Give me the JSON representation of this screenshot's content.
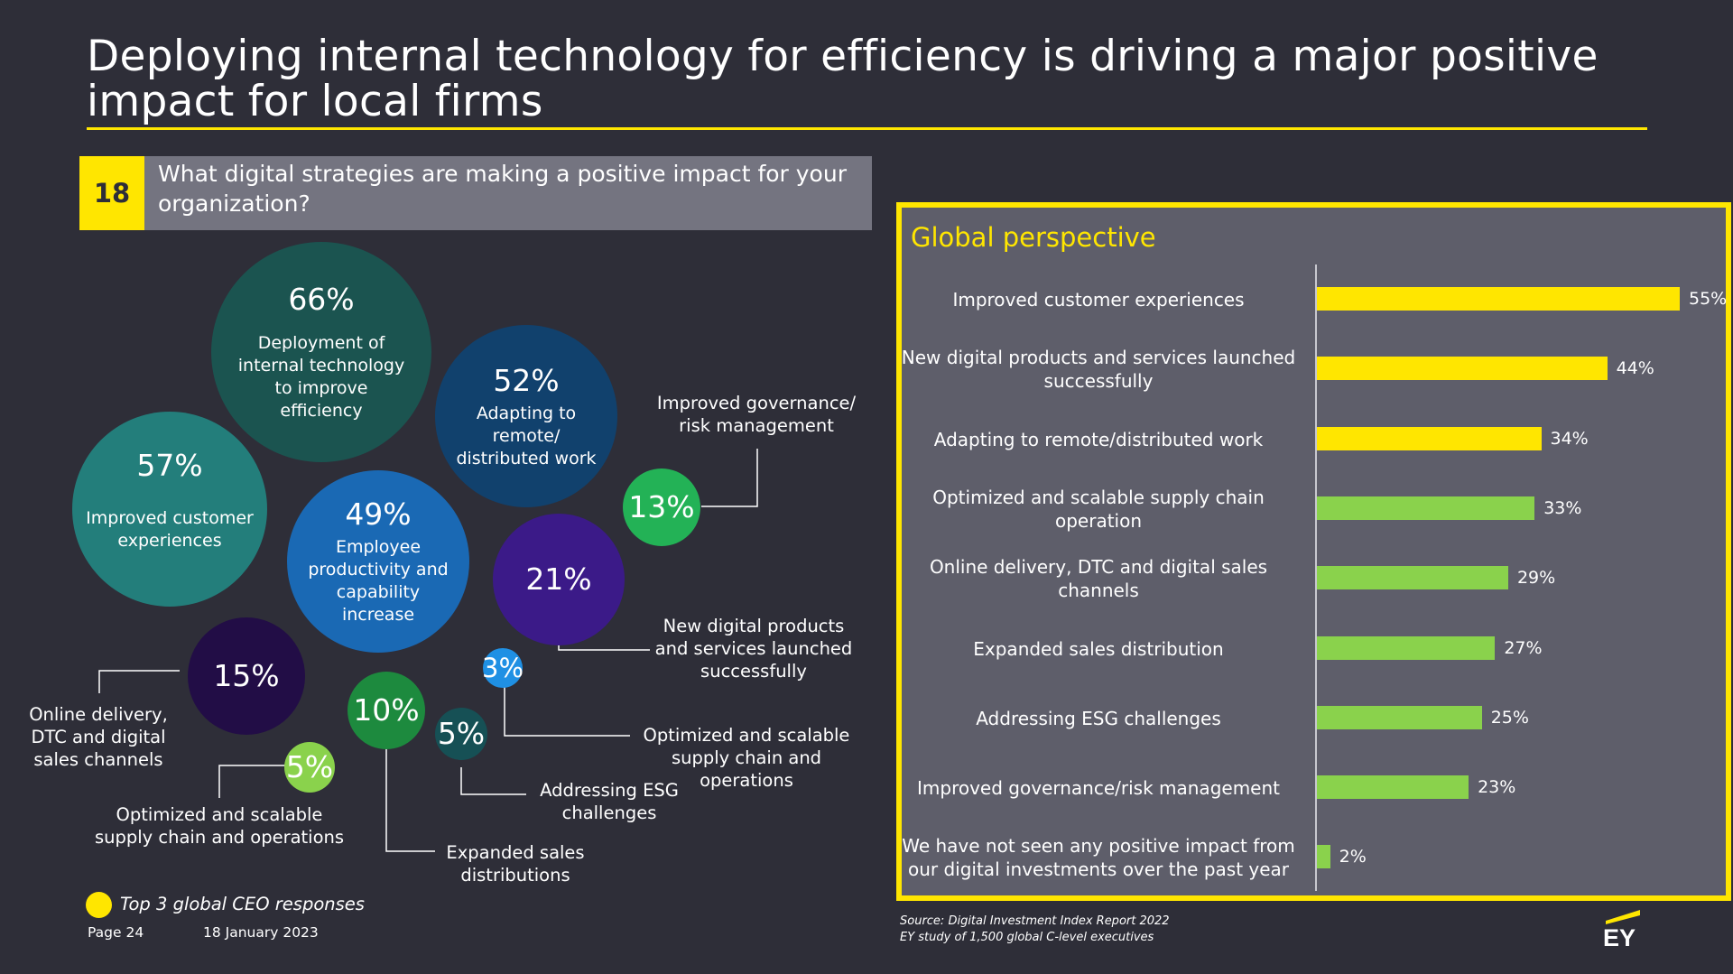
{
  "slide": {
    "title": "Deploying internal technology for efficiency is driving a major positive impact for local firms",
    "question_number": "18",
    "question": "What digital strategies are making a positive impact for your organization?"
  },
  "bubbles": [
    {
      "pct": "66%",
      "label": "Deployment of internal technology to improve efficiency",
      "value": 66,
      "color": "#1b5450"
    },
    {
      "pct": "52%",
      "label": "Adapting to remote/ distributed work",
      "value": 52,
      "color": "#11416d"
    },
    {
      "pct": "57%",
      "label": "Improved customer experiences",
      "value": 57,
      "color": "#237e7b"
    },
    {
      "pct": "49%",
      "label": "Employee productivity and capability increase",
      "value": 49,
      "color": "#1a69b4"
    },
    {
      "pct": "21%",
      "label": "",
      "value": 21,
      "color": "#3b1a88"
    },
    {
      "pct": "13%",
      "label": "",
      "value": 13,
      "color": "#23b256"
    },
    {
      "pct": "15%",
      "label": "",
      "value": 15,
      "color": "#220d46"
    },
    {
      "pct": "10%",
      "label": "",
      "value": 10,
      "color": "#1d8a3e"
    },
    {
      "pct": "5%",
      "label": "",
      "value": 5,
      "color": "#165055"
    },
    {
      "pct": "3%",
      "label": "",
      "value": 3,
      "color": "#1f90e4"
    },
    {
      "pct": "5%",
      "label": "",
      "value": 5,
      "color": "#8ad24c"
    }
  ],
  "outside_labels": {
    "governance": "Improved governance/ risk management",
    "new_products": "New digital products and services launched successfully",
    "supply_chain_right": "Optimized and scalable supply chain and operations",
    "esg": "Addressing ESG challenges",
    "expanded_sales": "Expanded sales distributions",
    "supply_chain_left": "Optimized and scalable supply chain and operations",
    "online_delivery": "Online delivery, DTC and digital sales channels"
  },
  "legend": {
    "text": "Top 3 global CEO responses",
    "color": "#ffe600"
  },
  "footer": {
    "page": "Page 24",
    "date": "18 January 2023"
  },
  "source": {
    "line1": "Source: Digital Investment Index Report 2022",
    "line2": "EY study of 1,500 global C-level executives"
  },
  "brand": {
    "logo_text": "EY"
  },
  "colors": {
    "yellow": "#ffe600",
    "green": "#8ad24c",
    "background": "#2e2e38",
    "panel": "#5e5e6a"
  },
  "chart_data": {
    "type": "bar",
    "title": "Global perspective",
    "orientation": "horizontal",
    "categories": [
      "Improved customer experiences",
      "New digital products and services launched successfully",
      "Adapting to remote/distributed work",
      "Optimized and scalable supply chain operation",
      "Online delivery, DTC and digital sales channels",
      "Expanded sales distribution",
      "Addressing ESG challenges",
      "Improved governance/risk management",
      "We have not seen any positive impact from our digital investments over the past year"
    ],
    "values": [
      55,
      44,
      34,
      33,
      29,
      27,
      25,
      23,
      2
    ],
    "value_labels": [
      "55%",
      "44%",
      "34%",
      "33%",
      "29%",
      "27%",
      "25%",
      "23%",
      "2%"
    ],
    "highlight": [
      true,
      true,
      true,
      false,
      false,
      false,
      false,
      false,
      false
    ],
    "xlim": [
      0,
      55
    ],
    "grid": false
  }
}
